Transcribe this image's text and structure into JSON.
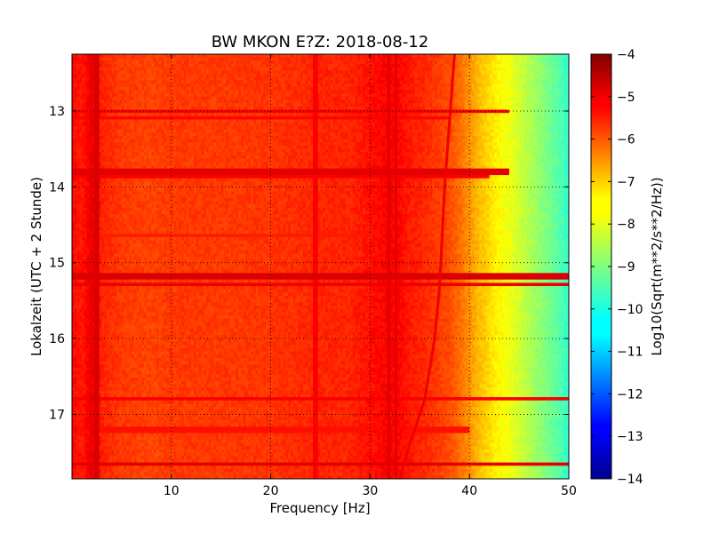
{
  "chart_data": {
    "type": "heatmap",
    "title": "BW MKON E?Z: 2018-08-12",
    "xlabel": "Frequency [Hz]",
    "ylabel": "Lokalzeit (UTC + 2 Stunde)",
    "xlim": [
      0,
      50
    ],
    "ylim": [
      12.25,
      17.85
    ],
    "x_ticks": [
      10,
      20,
      30,
      40,
      50
    ],
    "x_tick_labels": [
      "10",
      "20",
      "30",
      "40",
      "50"
    ],
    "y_ticks": [
      13,
      14,
      15,
      16,
      17
    ],
    "y_tick_labels": [
      "13",
      "14",
      "15",
      "16",
      "17"
    ],
    "y_inverted": true,
    "grid": true,
    "colorbar": {
      "label": "Log10(Sqrt(m**2/s**2/Hz))",
      "range": [
        -14,
        -4
      ],
      "ticks": [
        -4,
        -5,
        -6,
        -7,
        -8,
        -9,
        -10,
        -11,
        -12,
        -13,
        -14
      ],
      "tick_labels": [
        "−4",
        "−5",
        "−6",
        "−7",
        "−8",
        "−9",
        "−10",
        "−11",
        "−12",
        "−13",
        "−14"
      ],
      "colormap": "jet"
    },
    "spectral_profile": {
      "frequency_hz": [
        0,
        1,
        2,
        3,
        5,
        8,
        10,
        15,
        20,
        25,
        28,
        31,
        32,
        33,
        34,
        36,
        38,
        39,
        40,
        41,
        42,
        43,
        44,
        45,
        46,
        47,
        48,
        49,
        50
      ],
      "value": [
        -5.3,
        -5.5,
        -5.0,
        -5.6,
        -5.8,
        -5.9,
        -5.8,
        -5.8,
        -5.75,
        -5.6,
        -5.6,
        -5.3,
        -5.2,
        -5.3,
        -5.5,
        -5.7,
        -6.0,
        -6.3,
        -6.7,
        -7.1,
        -7.4,
        -7.7,
        -7.9,
        -8.2,
        -8.5,
        -8.8,
        -9.1,
        -9.4,
        -9.8
      ]
    },
    "horizontal_bands": [
      {
        "time": 13.0,
        "value": -5.2,
        "fmax": 44
      },
      {
        "time": 13.08,
        "value": -5.3,
        "fmax": 38
      },
      {
        "time": 13.8,
        "value": -5.0,
        "fmax": 44
      },
      {
        "time": 13.85,
        "value": -5.2,
        "fmax": 42
      },
      {
        "time": 14.65,
        "value": -5.5,
        "fmax": 30
      },
      {
        "time": 15.18,
        "value": -4.9,
        "fmax": 50
      },
      {
        "time": 15.28,
        "value": -5.1,
        "fmax": 50
      },
      {
        "time": 16.8,
        "value": -5.2,
        "fmax": 50
      },
      {
        "time": 17.2,
        "value": -5.4,
        "fmax": 40
      },
      {
        "time": 17.65,
        "value": -5.0,
        "fmax": 50
      }
    ],
    "vertical_lines": [
      {
        "frequency": 2.5,
        "value": -4.9
      },
      {
        "frequency": 24.5,
        "value": -5.2
      },
      {
        "frequency": 31.8,
        "value": -4.9
      },
      {
        "frequency": 32.6,
        "value": -5.0
      }
    ],
    "drifting_line": {
      "time": [
        12.25,
        14.0,
        15.3,
        16.0,
        16.8,
        17.4,
        17.85
      ],
      "frequency": [
        38.5,
        37.5,
        37.0,
        36.5,
        35.5,
        34.0,
        33.0
      ],
      "value": -5.1
    }
  }
}
